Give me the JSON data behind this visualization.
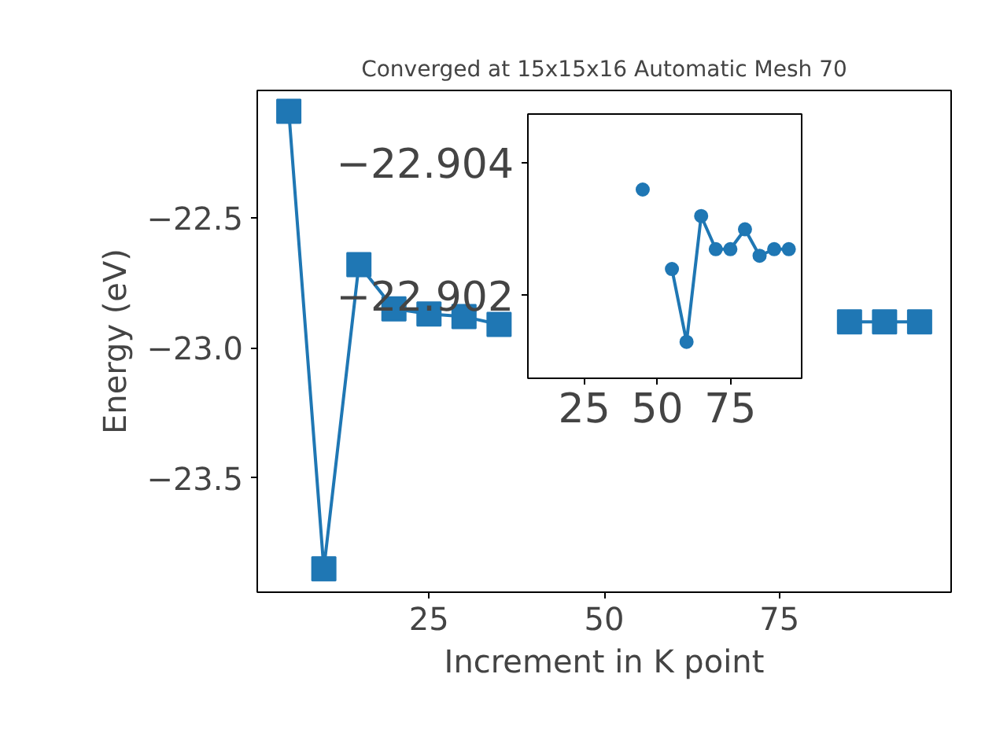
{
  "chart_data": [
    {
      "type": "line",
      "title": "Converged at 15x15x16 Automatic Mesh 70",
      "xlabel": "Increment in K point",
      "ylabel": "Energy (eV)",
      "marker": "square",
      "x": [
        5,
        10,
        15,
        20,
        25,
        30,
        35,
        40,
        45,
        50,
        55,
        60,
        65,
        70,
        75,
        80,
        85,
        90,
        95
      ],
      "series": [
        {
          "color": "#1f77b4",
          "values": [
            -22.09,
            -23.85,
            -22.68,
            -22.85,
            -22.87,
            -22.88,
            -22.91,
            null,
            null,
            null,
            null,
            null,
            null,
            null,
            null,
            null,
            -22.9,
            -22.9,
            -22.9
          ]
        }
      ],
      "xlim": [
        0.5,
        99.5
      ],
      "ylim": [
        -23.94,
        -22.01
      ],
      "xticks": [
        25,
        50,
        75
      ],
      "yticks": [
        {
          "value": -22.5,
          "label": "−22.5"
        },
        {
          "value": -23.0,
          "label": "−23.0"
        },
        {
          "value": -23.5,
          "label": "−23.5"
        }
      ]
    },
    {
      "type": "line",
      "marker": "circle",
      "x": [
        45,
        50,
        55,
        60,
        65,
        70,
        75,
        80,
        85,
        90,
        95
      ],
      "series": [
        {
          "color": "#1f77b4",
          "values": [
            -22.9036,
            null,
            -22.9024,
            -22.9013,
            -22.9032,
            -22.9027,
            -22.9027,
            -22.903,
            -22.9026,
            -22.9027,
            -22.9027
          ]
        }
      ],
      "xlim": [
        5.7,
        99.4
      ],
      "ylim": [
        -22.90075,
        -22.90474
      ],
      "xticks": [
        25,
        50,
        75
      ],
      "yticks": [
        {
          "value": -22.904,
          "label": "−22.904"
        },
        {
          "value": -22.902,
          "label": "−22.902"
        }
      ]
    }
  ]
}
